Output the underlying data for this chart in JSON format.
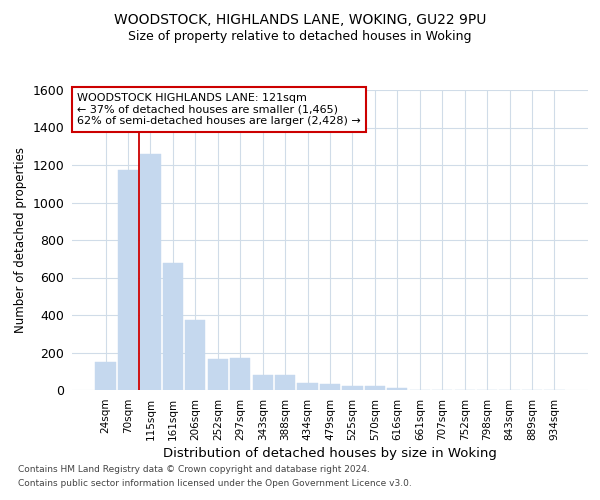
{
  "title1": "WOODSTOCK, HIGHLANDS LANE, WOKING, GU22 9PU",
  "title2": "Size of property relative to detached houses in Woking",
  "xlabel": "Distribution of detached houses by size in Woking",
  "ylabel": "Number of detached properties",
  "categories": [
    "24sqm",
    "70sqm",
    "115sqm",
    "161sqm",
    "206sqm",
    "252sqm",
    "297sqm",
    "343sqm",
    "388sqm",
    "434sqm",
    "479sqm",
    "525sqm",
    "570sqm",
    "616sqm",
    "661sqm",
    "707sqm",
    "752sqm",
    "798sqm",
    "843sqm",
    "889sqm",
    "934sqm"
  ],
  "values": [
    150,
    1175,
    1260,
    675,
    375,
    165,
    170,
    80,
    80,
    35,
    30,
    20,
    20,
    10,
    0,
    0,
    0,
    0,
    0,
    0,
    0
  ],
  "bar_color": "#c5d8ee",
  "bar_edge_color": "#c5d8ee",
  "grid_color": "#d0dce8",
  "background_color": "#ffffff",
  "ylim_max": 1600,
  "yticks": [
    0,
    200,
    400,
    600,
    800,
    1000,
    1200,
    1400,
    1600
  ],
  "red_line_x": 1.5,
  "annotation_line1": "WOODSTOCK HIGHLANDS LANE: 121sqm",
  "annotation_line2": "← 37% of detached houses are smaller (1,465)",
  "annotation_line3": "62% of semi-detached houses are larger (2,428) →",
  "annotation_box_facecolor": "#ffffff",
  "annotation_box_edgecolor": "#cc0000",
  "footnote1": "Contains HM Land Registry data © Crown copyright and database right 2024.",
  "footnote2": "Contains public sector information licensed under the Open Government Licence v3.0."
}
